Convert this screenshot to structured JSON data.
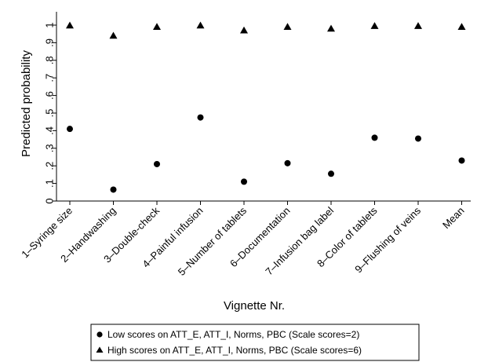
{
  "chart_data": {
    "type": "scatter",
    "xlabel": "Vignette Nr.",
    "ylabel": "Predicted probability",
    "ylim": [
      0,
      1
    ],
    "yticks": [
      "0",
      ".1",
      ".2",
      ".3",
      ".4",
      ".5",
      ".6",
      ".7",
      ".8",
      ".9",
      "1"
    ],
    "categories": [
      "1–Syringe size",
      "2–Handwashing",
      "3–Double-check",
      "4–Painful infusion",
      "5–Number of tablets",
      "6–Documentation",
      "7–Infusion bag label",
      "8–Color of tablets",
      "9–Flushing of veins",
      "Mean"
    ],
    "series": [
      {
        "name": "Low scores on ATT_E, ATT_I, Norms, PBC (Scale scores=2)",
        "marker": "circle",
        "values": [
          0.41,
          0.065,
          0.21,
          0.475,
          0.11,
          0.215,
          0.155,
          0.36,
          0.355,
          0.23
        ]
      },
      {
        "name": "High scores on ATT_E, ATT_I, Norms, PBC (Scale scores=6)",
        "marker": "triangle",
        "values": [
          0.998,
          0.94,
          0.99,
          0.998,
          0.97,
          0.99,
          0.98,
          0.995,
          0.995,
          0.99
        ]
      }
    ],
    "grid": false,
    "legend_position": "bottom"
  }
}
